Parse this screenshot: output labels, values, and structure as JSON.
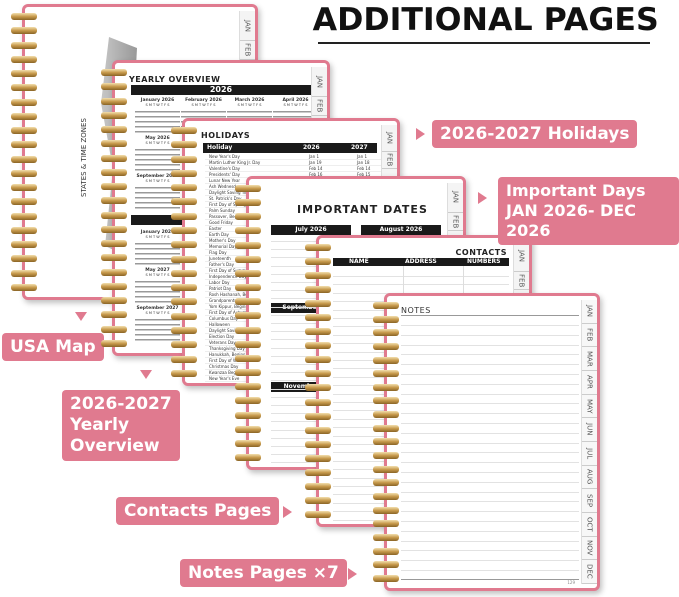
{
  "title": "ADDITIONAL PAGES",
  "accent_color": "#e07a8f",
  "months": [
    "JAN",
    "FEB",
    "MAR",
    "APR",
    "MAY",
    "JUN",
    "JUL",
    "AUG",
    "SEP",
    "OCT",
    "NOV",
    "DEC"
  ],
  "map_page": {
    "heading": "STATES & TIME ZONES"
  },
  "yearly": {
    "heading": "YEARLY OVERVIEW",
    "year1": "2026",
    "months1": [
      "January 2026",
      "February 2026",
      "March 2026",
      "April 2026",
      "May 2026",
      "September 2026"
    ],
    "months2": [
      "January 2027",
      "May 2027",
      "September 2027"
    ],
    "weekdays": "S M T W T F S"
  },
  "holidays": {
    "heading": "HOLIDAYS",
    "columns": [
      "Holiday",
      "2026",
      "2027"
    ],
    "rows": [
      [
        "New Year's Day",
        "Jan 1",
        "Jan 1"
      ],
      [
        "Martin Luther King Jr. Day",
        "Jan 19",
        "Jan 18"
      ],
      [
        "Valentine's Day",
        "Feb 14",
        "Feb 14"
      ],
      [
        "Presidents' Day",
        "Feb 16",
        "Feb 15"
      ],
      [
        "Lunar New Year",
        "",
        ""
      ],
      [
        "Ash Wednesday",
        "",
        ""
      ],
      [
        "Daylight Saving Time",
        "",
        ""
      ],
      [
        "St. Patrick's Day",
        "",
        ""
      ],
      [
        "First Day of Spring",
        "",
        ""
      ],
      [
        "Palm Sunday",
        "",
        ""
      ],
      [
        "Passover, Begins at Su",
        "",
        ""
      ],
      [
        "Good Friday",
        "",
        ""
      ],
      [
        "Easter",
        "",
        ""
      ],
      [
        "Earth Day",
        "",
        ""
      ],
      [
        "Mother's Day",
        "",
        ""
      ],
      [
        "Memorial Day",
        "",
        ""
      ],
      [
        "Flag Day",
        "",
        ""
      ],
      [
        "Juneteenth",
        "",
        ""
      ],
      [
        "Father's Day",
        "",
        ""
      ],
      [
        "First Day of Summ",
        "",
        ""
      ],
      [
        "Independence Day",
        "",
        ""
      ],
      [
        "Labor Day",
        "",
        ""
      ],
      [
        "Patriot Day",
        "",
        ""
      ],
      [
        "Rosh Hashanah, Begi",
        "",
        ""
      ],
      [
        "Grandparents Day",
        "",
        ""
      ],
      [
        "Yom Kippur, Begins at",
        "",
        ""
      ],
      [
        "First Day of Autum",
        "",
        ""
      ],
      [
        "Columbus Day",
        "",
        ""
      ],
      [
        "Halloween",
        "",
        ""
      ],
      [
        "Daylight Saving Time",
        "",
        ""
      ],
      [
        "Election Day",
        "",
        ""
      ],
      [
        "Veterans Day",
        "",
        ""
      ],
      [
        "Thanksgiving Day",
        "",
        ""
      ],
      [
        "Hanukkah, Begins at S",
        "",
        ""
      ],
      [
        "First Day of Winte",
        "",
        ""
      ],
      [
        "Christmas Day",
        "",
        ""
      ],
      [
        "Kwanzaa Begins",
        "",
        ""
      ],
      [
        "New Year's Eve",
        "",
        ""
      ]
    ]
  },
  "important_dates": {
    "heading": "IMPORTANT DATES",
    "months": [
      "July 2026",
      "August 2026",
      "September",
      "November"
    ]
  },
  "contacts": {
    "heading": "CONTACTS",
    "columns": [
      "NAME",
      "ADDRESS",
      "NUMBERS"
    ]
  },
  "notes": {
    "heading": "NOTES",
    "page_number": "129"
  },
  "callouts": {
    "holidays": "2026-2027 Holidays",
    "important_1": "Important Days",
    "important_2": "JAN 2026- DEC 2026",
    "usa_map": "USA Map",
    "yearly_1": "2026-2027",
    "yearly_2": "Yearly",
    "yearly_3": "Overview",
    "contacts": "Contacts Pages",
    "notes": "Notes Pages ×7"
  }
}
